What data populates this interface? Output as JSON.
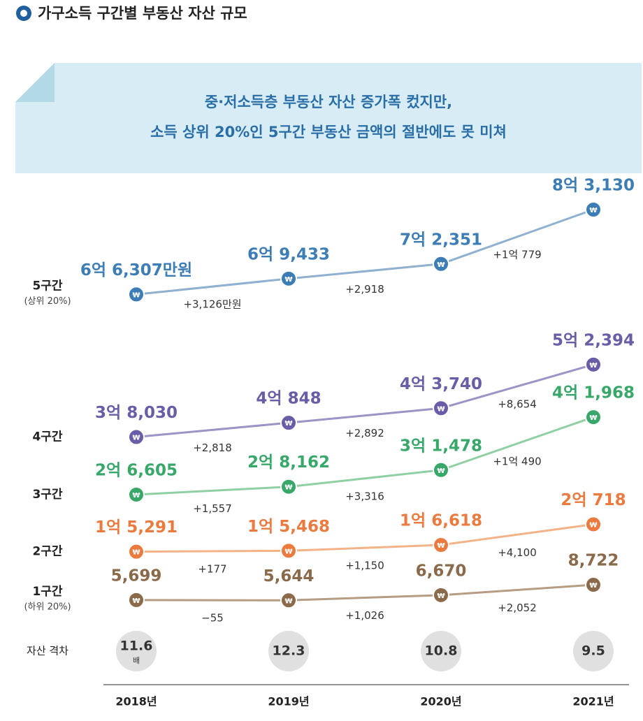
{
  "chart_data": {
    "type": "line",
    "title": "가구소득 구간별 부동산 자산 규모",
    "headline": [
      "중·저소득층 부동산 자산 증가폭 컸지만,",
      "소득 상위 20%인 5구간 부동산 금액의 절반에도 못 미쳐"
    ],
    "categories": [
      "2018년",
      "2019년",
      "2020년",
      "2021년"
    ],
    "point_symbol": "₩",
    "series": [
      {
        "name": "5구간",
        "subname": "(상위 20%)",
        "color": "#3d7db5",
        "line_color": "#8fb0d0",
        "values": [
          66307,
          69433,
          72351,
          83130
        ],
        "value_labels": [
          "6억 6,307만원",
          "6억 9,433",
          "7억 2,351",
          "8억 3,130"
        ],
        "diff_labels": [
          "+3,126만원",
          "+2,918",
          "+1억 779"
        ]
      },
      {
        "name": "4구간",
        "color": "#6a5ca6",
        "line_color": "#9c93c6",
        "values": [
          38030,
          40848,
          43740,
          52394
        ],
        "value_labels": [
          "3억 8,030",
          "4억 848",
          "4억 3,740",
          "5억 2,394"
        ],
        "diff_labels": [
          "+2,818",
          "+2,892",
          "+8,654"
        ]
      },
      {
        "name": "3구간",
        "color": "#38a86a",
        "line_color": "#8fd0a3",
        "values": [
          26605,
          28162,
          31478,
          41968
        ],
        "value_labels": [
          "2억 6,605",
          "2억 8,162",
          "3억 1,478",
          "4억 1,968"
        ],
        "diff_labels": [
          "+1,557",
          "+3,316",
          "+1억 490"
        ]
      },
      {
        "name": "2구간",
        "color": "#eb7a3e",
        "line_color": "#f3b287",
        "values": [
          15291,
          15468,
          16618,
          20718
        ],
        "value_labels": [
          "1억 5,291",
          "1억 5,468",
          "1억 6,618",
          "2억 718"
        ],
        "diff_labels": [
          "+177",
          "+1,150",
          "+4,100"
        ]
      },
      {
        "name": "1구간",
        "subname": "(하위 20%)",
        "color": "#8a6a4a",
        "line_color": "#b59c82",
        "values": [
          5699,
          5644,
          6670,
          8722
        ],
        "value_labels": [
          "5,699",
          "5,644",
          "6,670",
          "8,722"
        ],
        "diff_labels": [
          "−55",
          "+1,026",
          "+2,052"
        ]
      }
    ],
    "gap": {
      "label": "자산 격차",
      "values": [
        11.6,
        12.3,
        10.8,
        9.5
      ],
      "unit": "배"
    }
  }
}
